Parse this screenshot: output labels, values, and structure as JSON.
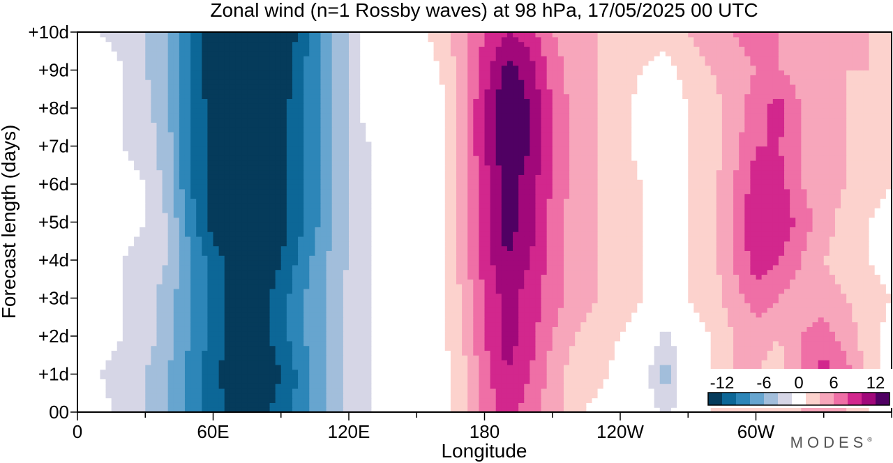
{
  "chart_data": {
    "type": "heatmap",
    "title": "Zonal wind (n=1 Rossby waves) at 98 hPa,  17/05/2025  00 UTC",
    "xlabel": "Longitude",
    "ylabel": "Forecast length (days)",
    "x_ticks": [
      {
        "lon": 0,
        "label": "0"
      },
      {
        "lon": 60,
        "label": "60E"
      },
      {
        "lon": 120,
        "label": "120E"
      },
      {
        "lon": 180,
        "label": "180"
      },
      {
        "lon": 240,
        "label": "120W"
      },
      {
        "lon": 300,
        "label": "60W"
      }
    ],
    "x_minor_step": 30,
    "xlim": [
      0,
      360
    ],
    "y_ticks": [
      {
        "day": 0,
        "label": "00"
      },
      {
        "day": 1,
        "label": "+1d"
      },
      {
        "day": 2,
        "label": "+2d"
      },
      {
        "day": 3,
        "label": "+3d"
      },
      {
        "day": 4,
        "label": "+4d"
      },
      {
        "day": 5,
        "label": "+5d"
      },
      {
        "day": 6,
        "label": "+6d"
      },
      {
        "day": 7,
        "label": "+7d"
      },
      {
        "day": 8,
        "label": "+8d"
      },
      {
        "day": 9,
        "label": "+9d"
      },
      {
        "day": 10,
        "label": "+10d"
      }
    ],
    "ylim": [
      0,
      10
    ],
    "colorbar": {
      "levels": [
        -15,
        -12,
        -10,
        -8,
        -6,
        -4,
        -2,
        2,
        4,
        6,
        8,
        10,
        12,
        15
      ],
      "colors": [
        "#053b5b",
        "#0c6797",
        "#2d86b8",
        "#67a5cf",
        "#a2bedb",
        "#d6d6e6",
        "#ffffff",
        "#fcd2cd",
        "#f7a6bb",
        "#ef6fa6",
        "#d2278d",
        "#a1087a",
        "#500063"
      ],
      "labels": [
        {
          "value": -12,
          "label": "-12"
        },
        {
          "value": -6,
          "label": "-6"
        },
        {
          "value": 0,
          "label": "0"
        },
        {
          "value": 6,
          "label": "6"
        },
        {
          "value": 12,
          "label": "12"
        }
      ],
      "placement": "bottom-right"
    },
    "field": {
      "description_units": "m/s",
      "lon_step": 10,
      "day_step": 1,
      "lons": [
        0,
        10,
        20,
        30,
        40,
        50,
        60,
        70,
        80,
        90,
        100,
        110,
        120,
        130,
        140,
        150,
        160,
        170,
        180,
        190,
        200,
        210,
        220,
        230,
        240,
        250,
        260,
        270,
        280,
        290,
        300,
        310,
        320,
        330,
        340,
        350,
        360
      ],
      "values": [
        [
          1,
          -1,
          -3,
          -4,
          -6,
          -9,
          -11,
          -13,
          -13,
          -11,
          -9,
          -6,
          -3,
          -2,
          0,
          0,
          1,
          3,
          7,
          9,
          7,
          5,
          3,
          1,
          -1,
          0,
          -3,
          0,
          2,
          3,
          3,
          3,
          4,
          6,
          4,
          2,
          1
        ],
        [
          1,
          -2,
          -3,
          -4,
          -6,
          -9,
          -11,
          -14,
          -14,
          -12,
          -9,
          -6,
          -3,
          -2,
          0,
          0,
          1,
          3,
          7,
          10,
          8,
          5,
          3,
          3,
          1,
          -1,
          -5,
          0,
          2,
          4,
          4,
          3,
          6,
          9,
          7,
          3,
          1
        ],
        [
          1,
          -1,
          -2,
          -3,
          -5,
          -8,
          -11,
          -13,
          -13,
          -11,
          -8,
          -6,
          -3,
          -2,
          -1,
          0,
          1,
          4,
          8,
          11,
          9,
          6,
          4,
          3,
          2,
          1,
          -3,
          1,
          2,
          4,
          5,
          4,
          6,
          7,
          5,
          3,
          1
        ],
        [
          2,
          0,
          -2,
          -3,
          -5,
          -8,
          -11,
          -13,
          -13,
          -11,
          -8,
          -6,
          -3,
          -2,
          -1,
          0,
          1,
          4,
          8,
          11,
          9,
          7,
          5,
          4,
          3,
          2,
          1,
          2,
          3,
          5,
          7,
          6,
          5,
          5,
          4,
          3,
          2
        ],
        [
          0,
          0,
          -2,
          -3,
          -4,
          -8,
          -11,
          -13,
          -14,
          -12,
          -9,
          -6,
          -4,
          -2,
          -1,
          0,
          1,
          5,
          9,
          12,
          10,
          7,
          5,
          4,
          3,
          2,
          1,
          2,
          3,
          6,
          9,
          8,
          6,
          4,
          3,
          2,
          1
        ],
        [
          0,
          0,
          -1,
          -2,
          -4,
          -9,
          -13,
          -15,
          -15,
          -13,
          -10,
          -7,
          -4,
          -2,
          -1,
          0,
          1,
          5,
          9,
          13,
          11,
          7,
          5,
          4,
          3,
          2,
          1,
          2,
          3,
          6,
          10,
          10,
          7,
          5,
          3,
          2,
          1
        ],
        [
          0,
          0,
          -1,
          -2,
          -5,
          -10,
          -13,
          -15,
          -15,
          -13,
          -10,
          -7,
          -4,
          -2,
          0,
          0,
          1,
          5,
          9,
          13,
          11,
          8,
          5,
          4,
          3,
          2,
          1,
          2,
          3,
          6,
          9,
          9,
          6,
          5,
          4,
          3,
          2
        ],
        [
          0,
          0,
          -2,
          -3,
          -5,
          -10,
          -13,
          -15,
          -15,
          -13,
          -10,
          -7,
          -4,
          -2,
          0,
          0,
          1,
          5,
          10,
          14,
          12,
          8,
          5,
          4,
          3,
          1,
          0,
          2,
          3,
          5,
          8,
          8,
          6,
          5,
          4,
          3,
          2
        ],
        [
          0,
          0,
          -2,
          -3,
          -6,
          -10,
          -13,
          -15,
          -15,
          -13,
          -10,
          -7,
          -4,
          0,
          0,
          0,
          1,
          5,
          10,
          14,
          12,
          8,
          5,
          4,
          3,
          1,
          0,
          2,
          3,
          5,
          7,
          9,
          6,
          5,
          4,
          3,
          2
        ],
        [
          0,
          0,
          -2,
          -4,
          -6,
          -10,
          -14,
          -15,
          -15,
          -14,
          -10,
          -7,
          -4,
          0,
          0,
          0,
          2,
          5,
          9,
          13,
          11,
          7,
          5,
          4,
          3,
          2,
          1,
          3,
          4,
          5,
          6,
          6,
          5,
          5,
          4,
          4,
          3
        ],
        [
          0,
          -2,
          -3,
          -4,
          -6,
          -10,
          -14,
          -15,
          -15,
          -14,
          -11,
          -7,
          -4,
          0,
          0,
          1,
          3,
          5,
          8,
          10,
          9,
          6,
          5,
          4,
          4,
          3,
          3,
          4,
          5,
          6,
          7,
          6,
          5,
          5,
          4,
          4,
          3
        ]
      ]
    }
  },
  "brand": {
    "name": "MODES",
    "mark": "®"
  }
}
